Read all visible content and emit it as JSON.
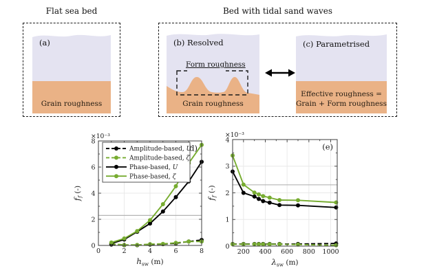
{
  "figure": {
    "colors": {
      "water": "#e4e3f1",
      "sand": "#eab286",
      "green": "#77ac30",
      "black": "#000000",
      "reference_gray": "#ababab",
      "grid_gray": "#e8e8e8"
    },
    "flat_panel": {
      "title": "Flat sea bed",
      "tag": "(a)",
      "bed_label": "Grain roughness"
    },
    "sandwave_group": {
      "title": "Bed with tidal sand waves"
    },
    "resolved_panel": {
      "tag": "(b) Resolved",
      "form_label": "Form roughness",
      "bed_label": "Grain roughness"
    },
    "parametrised_panel": {
      "tag": "(c) Parametrised",
      "bed_label_line1": "Effective roughness =",
      "bed_label_line2": "Grain + Form roughness"
    }
  },
  "chart_data": [
    {
      "id": "d",
      "type": "line",
      "panel_label": "(d)",
      "xlabel": {
        "base": "h",
        "sub": "sw",
        "unit": " (m)"
      },
      "ylabel": {
        "base": "f",
        "sub": "f",
        "unit": " (-)"
      },
      "scale_label": "×10⁻³",
      "xlim": [
        0,
        8
      ],
      "ylim": [
        0,
        8
      ],
      "xticks": [
        0,
        2,
        4,
        6,
        8
      ],
      "yticks": [
        0,
        2,
        4,
        6,
        8
      ],
      "grid": true,
      "reference_line_y": 2.3,
      "x": [
        1,
        2,
        3,
        4,
        5,
        6,
        7,
        8
      ],
      "series": [
        {
          "name": "Amplitude-based, U",
          "color": "#000000",
          "dashed": true,
          "values": [
            0.07,
            0.02,
            0.02,
            0.07,
            0.1,
            0.16,
            0.3,
            0.42
          ]
        },
        {
          "name": "Amplitude-based, ζ",
          "color": "#77ac30",
          "dashed": true,
          "values": [
            0.12,
            0.04,
            0.04,
            0.1,
            0.12,
            0.2,
            0.3,
            0.3
          ]
        },
        {
          "name": "Phase-based, U",
          "color": "#000000",
          "dashed": false,
          "values": [
            0.15,
            0.45,
            1.05,
            1.68,
            2.6,
            3.7,
            4.9,
            6.4
          ]
        },
        {
          "name": "Phase-based, ζ",
          "color": "#77ac30",
          "dashed": false,
          "values": [
            0.22,
            0.53,
            1.1,
            1.93,
            3.16,
            4.53,
            6.3,
            7.7
          ]
        }
      ],
      "legend": true
    },
    {
      "id": "e",
      "type": "line",
      "panel_label": "(e)",
      "xlabel": {
        "base": "λ",
        "sub": "sw",
        "unit": " (m)"
      },
      "ylabel": {
        "base": "f",
        "sub": "f",
        "unit": " (-)"
      },
      "scale_label": "×10⁻³",
      "xlim": [
        100,
        1060
      ],
      "ylim": [
        0,
        4
      ],
      "xticks": [
        200,
        400,
        600,
        800,
        1000
      ],
      "yticks": [
        0,
        1,
        2,
        3,
        4
      ],
      "grid": true,
      "reference_line_y": 2.3,
      "x": [
        100,
        200,
        300,
        340,
        380,
        440,
        530,
        700,
        1050
      ],
      "series": [
        {
          "name": "Amplitude-based, U",
          "color": "#000000",
          "dashed": true,
          "values": [
            0.08,
            0.08,
            0.08,
            0.08,
            0.08,
            0.08,
            0.08,
            0.08,
            0.1
          ]
        },
        {
          "name": "Amplitude-based, ζ",
          "color": "#77ac30",
          "dashed": true,
          "values": [
            0.07,
            0.07,
            0.07,
            0.07,
            0.07,
            0.07,
            0.07,
            0.06,
            0.03
          ]
        },
        {
          "name": "Phase-based, U",
          "color": "#000000",
          "dashed": false,
          "values": [
            2.8,
            2.0,
            1.86,
            1.77,
            1.69,
            1.63,
            1.54,
            1.53,
            1.45
          ]
        },
        {
          "name": "Phase-based, ζ",
          "color": "#77ac30",
          "dashed": false,
          "values": [
            3.4,
            2.31,
            2.01,
            1.94,
            1.88,
            1.82,
            1.73,
            1.72,
            1.64
          ]
        }
      ],
      "legend": false
    }
  ]
}
